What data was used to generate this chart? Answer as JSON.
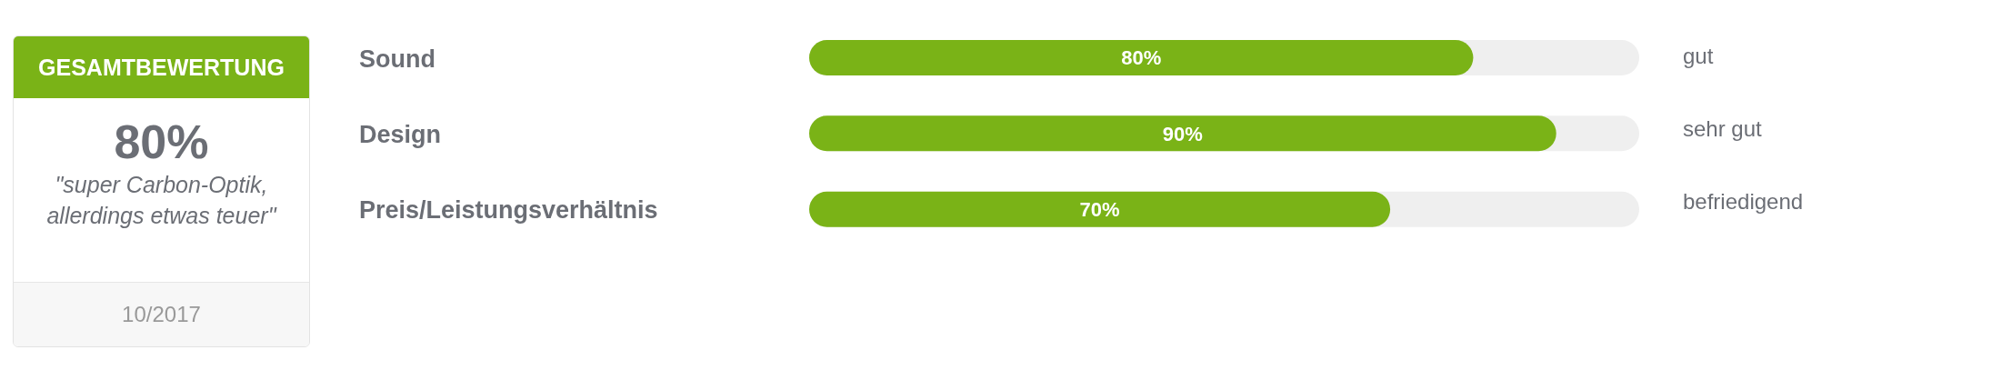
{
  "chart_data": [
    {
      "type": "other",
      "title": "GESAMTBEWERTUNG",
      "annotations": [
        "80%",
        "\"super Carbon-Optik, allerdings etwas teuer\"",
        "10/2017"
      ]
    },
    {
      "type": "bar",
      "orientation": "horizontal",
      "categories": [
        "Sound",
        "Design",
        "Preis/Leistungsverhältnis"
      ],
      "values": [
        80,
        90,
        70
      ],
      "value_labels": [
        "80%",
        "90%",
        "70%"
      ],
      "color": "#7ab317",
      "xlim": [
        0,
        100
      ],
      "tick_labels": "y",
      "grid": false,
      "legend": false,
      "annotations": [
        "gut",
        "sehr gut",
        "befriedigend"
      ]
    }
  ]
}
